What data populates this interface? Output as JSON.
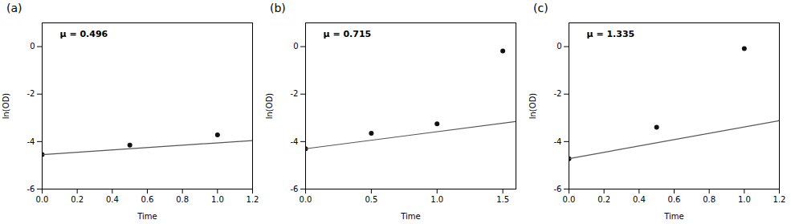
{
  "chart_data": [
    {
      "type": "scatter",
      "title": "(a)",
      "annotation": "μ = 0.496",
      "xlabel": "Time",
      "ylabel": "ln(OD)",
      "xlim": [
        0.0,
        1.2
      ],
      "ylim": [
        -6,
        1
      ],
      "xticks": [
        {
          "value": 0.0,
          "label": "0.0"
        },
        0.2,
        0.4,
        0.6,
        0.8,
        {
          "value": 1.0,
          "label": "1.0"
        },
        1.2
      ],
      "yticks": [
        -6,
        -4,
        -2,
        0
      ],
      "series": [
        {
          "type": "scatter",
          "color": "#111111",
          "x": [
            0.0,
            0.5,
            1.0
          ],
          "values": [
            -4.55,
            -4.15,
            -3.72
          ]
        },
        {
          "type": "line",
          "color": "#555555",
          "x": [
            0.0,
            1.2
          ],
          "values": [
            -4.55,
            -3.9548
          ]
        }
      ]
    },
    {
      "type": "scatter",
      "title": "(b)",
      "annotation": "μ = 0.715",
      "xlabel": "Time",
      "ylabel": "ln(OD)",
      "xlim": [
        0.0,
        1.6
      ],
      "ylim": [
        -6,
        1
      ],
      "xticks": [
        {
          "value": 0.0,
          "label": "0.0"
        },
        0.5,
        {
          "value": 1.0,
          "label": "1.0"
        },
        1.5
      ],
      "yticks": [
        -6,
        -4,
        -2,
        0
      ],
      "series": [
        {
          "type": "scatter",
          "color": "#111111",
          "x": [
            0.0,
            0.5,
            1.0,
            1.5
          ],
          "values": [
            -4.3,
            -3.65,
            -3.25,
            -0.18
          ]
        },
        {
          "type": "line",
          "color": "#555555",
          "x": [
            0.0,
            1.6
          ],
          "values": [
            -4.3,
            -3.156
          ]
        }
      ]
    },
    {
      "type": "scatter",
      "title": "(c)",
      "annotation": "μ = 1.335",
      "xlabel": "Time",
      "ylabel": "ln(OD)",
      "xlim": [
        0.0,
        1.2
      ],
      "ylim": [
        -6,
        1
      ],
      "xticks": [
        {
          "value": 0.0,
          "label": "0.0"
        },
        0.2,
        0.4,
        0.6,
        0.8,
        {
          "value": 1.0,
          "label": "1.0"
        },
        1.2
      ],
      "yticks": [
        -6,
        -4,
        -2,
        0
      ],
      "series": [
        {
          "type": "scatter",
          "color": "#111111",
          "x": [
            0.0,
            0.5,
            1.0
          ],
          "values": [
            -4.72,
            -3.4,
            -0.08
          ]
        },
        {
          "type": "line",
          "color": "#555555",
          "x": [
            0.0,
            1.2
          ],
          "values": [
            -4.72,
            -3.118
          ]
        }
      ]
    }
  ]
}
